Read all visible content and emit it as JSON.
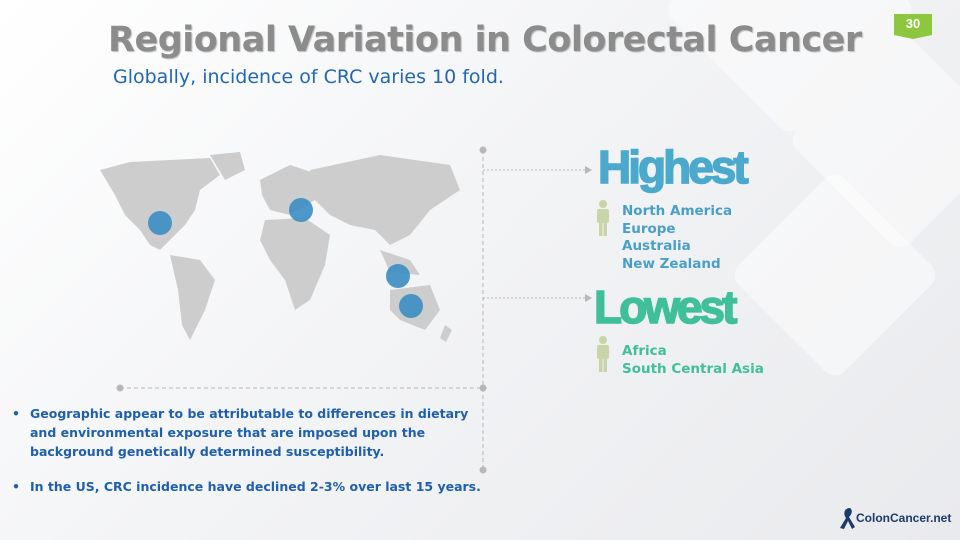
{
  "slide": {
    "title": "Regional Variation in Colorectal  Cancer",
    "subtitle": "Globally, incidence of CRC varies 10 fold.",
    "page_number": "30",
    "highest": {
      "heading": "Highest",
      "regions": [
        "North America",
        "Europe",
        "Australia",
        "New Zealand"
      ]
    },
    "lowest": {
      "heading": "Lowest",
      "regions": [
        "Africa",
        "South Central Asia"
      ]
    },
    "bullets": [
      "Geographic appear to be attributable to differences in dietary and environmental exposure that are imposed upon the background genetically determined susceptibility.",
      "In the US, CRC incidence have declined 2-3% over last 15 years."
    ],
    "logo": "ColonCancer.net",
    "colors": {
      "title": "#8c8c8c",
      "subtitle": "#2267b4",
      "highest": "#4aa9cc",
      "lowest": "#3fbf9a",
      "badge": "#8dc63f",
      "marker": "#3b8ec4",
      "map": "#cfcfcf"
    }
  }
}
